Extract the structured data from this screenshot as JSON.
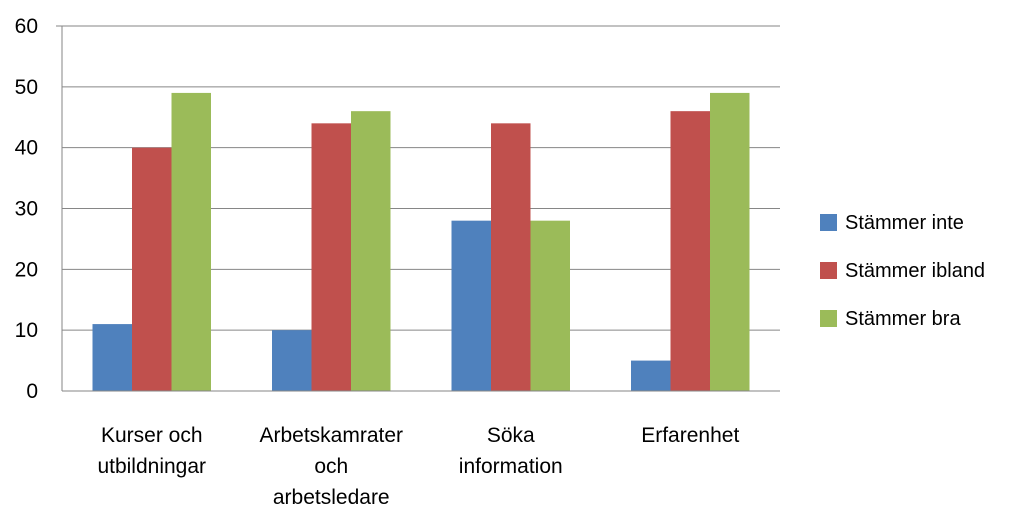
{
  "chart_data": {
    "type": "bar",
    "categories": [
      [
        "Kurser och",
        "utbildningar"
      ],
      [
        "Arbetskamrater",
        "och",
        "arbetsledare"
      ],
      [
        "Söka",
        "information"
      ],
      [
        "Erfarenhet"
      ]
    ],
    "series": [
      {
        "name": "Stämmer inte",
        "color": "#4F81BD",
        "values": [
          11,
          10,
          28,
          5
        ]
      },
      {
        "name": "Stämmer ibland",
        "color": "#C0504D",
        "values": [
          40,
          44,
          44,
          46
        ]
      },
      {
        "name": "Stämmer bra",
        "color": "#9BBB59",
        "values": [
          49,
          46,
          28,
          49
        ]
      }
    ],
    "y_ticks": [
      "0",
      "10",
      "20",
      "30",
      "40",
      "50",
      "60"
    ],
    "ylim": [
      0,
      60
    ],
    "grid": true,
    "legend_position": "right",
    "title": "",
    "xlabel": "",
    "ylabel": ""
  }
}
